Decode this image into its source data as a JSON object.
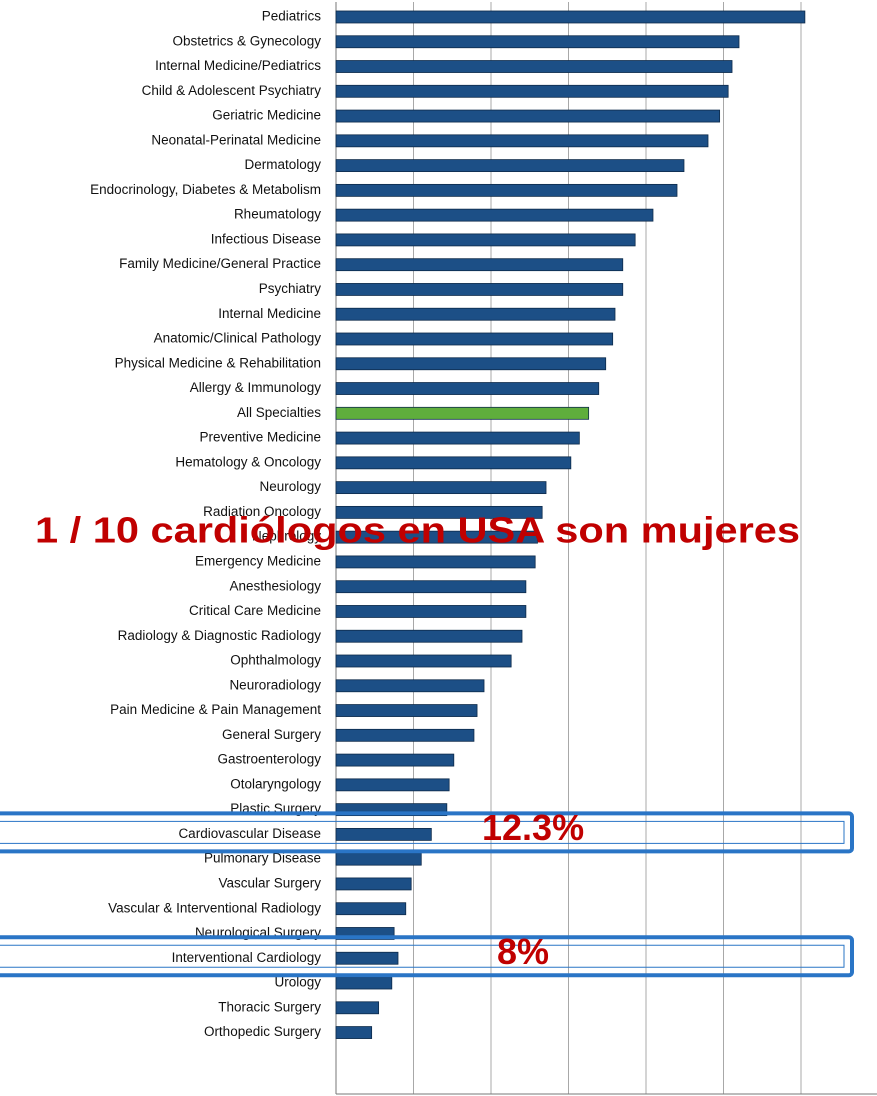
{
  "chart_data": {
    "type": "barh",
    "categories": [
      "Pediatrics",
      "Obstetrics & Gynecology",
      "Internal Medicine/Pediatrics",
      "Child & Adolescent Psychiatry",
      "Geriatric Medicine",
      "Neonatal-Perinatal Medicine",
      "Dermatology",
      "Endocrinology, Diabetes & Metabolism",
      "Rheumatology",
      "Infectious Disease",
      "Family Medicine/General Practice",
      "Psychiatry",
      "Internal Medicine",
      "Anatomic/Clinical Pathology",
      "Physical Medicine & Rehabilitation",
      "Allergy & Immunology",
      "All Specialties",
      "Preventive Medicine",
      "Hematology & Oncology",
      "Neurology",
      "Radiation Oncology",
      "Nephrology",
      "Emergency Medicine",
      "Anesthesiology",
      "Critical Care Medicine",
      "Radiology & Diagnostic Radiology",
      "Ophthalmology",
      "Neuroradiology",
      "Pain Medicine & Pain Management",
      "General Surgery",
      "Gastroenterology",
      "Otolaryngology",
      "Plastic Surgery",
      "Cardiovascular Disease",
      "Pulmonary Disease",
      "Vascular Surgery",
      "Vascular & Interventional Radiology",
      "Neurological Surgery",
      "Interventional Cardiology",
      "Urology",
      "Thoracic Surgery",
      "Orthopedic Surgery"
    ],
    "values": [
      60.5,
      52.0,
      51.1,
      50.6,
      49.5,
      48.0,
      44.9,
      44.0,
      40.9,
      38.6,
      37.0,
      37.0,
      36.0,
      35.7,
      34.8,
      33.9,
      32.6,
      31.4,
      30.3,
      27.1,
      26.6,
      26.0,
      25.7,
      24.5,
      24.5,
      24.0,
      22.6,
      19.1,
      18.2,
      17.8,
      15.2,
      14.6,
      14.3,
      12.3,
      11.0,
      9.7,
      9.0,
      7.5,
      8,
      7.2,
      5.5,
      4.6
    ],
    "color": "#1c4f86",
    "highlight": {
      "category": "All Specialties",
      "color": "#5fae3c"
    },
    "xlim": [
      0,
      70
    ],
    "xticks": [
      0,
      10,
      20,
      30,
      40,
      50,
      60,
      70
    ],
    "grid": true,
    "annotations": [
      {
        "text": "1 / 10 cardiólogos en USA son mujeres"
      },
      {
        "text": "12.3%",
        "category": "Cardiovascular Disease",
        "value": 12.3
      },
      {
        "text": "8%",
        "category": "Interventional Cardiology",
        "value": 8
      }
    ]
  }
}
